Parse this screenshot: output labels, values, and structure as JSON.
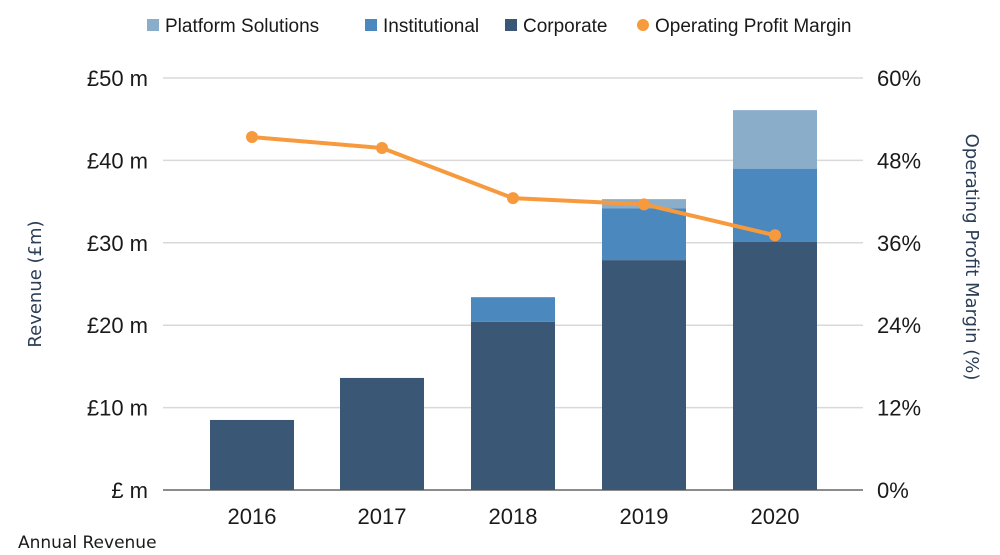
{
  "chart_data": {
    "type": "bar",
    "stacked": true,
    "title": "",
    "caption": "Annual Revenue",
    "categories": [
      "2016",
      "2017",
      "2018",
      "2019",
      "2020"
    ],
    "series": [
      {
        "name": "Corporate",
        "type": "bar",
        "axis": "left",
        "color": "#3a5875",
        "values": [
          8.5,
          13.6,
          20.4,
          27.9,
          30.1
        ]
      },
      {
        "name": "Institutional",
        "type": "bar",
        "axis": "left",
        "color": "#4a88be",
        "values": [
          0,
          0,
          3.0,
          6.3,
          8.9
        ]
      },
      {
        "name": "Platform Solutions",
        "type": "bar",
        "axis": "left",
        "color": "#8aadca",
        "values": [
          0,
          0,
          0,
          1.1,
          7.1
        ]
      },
      {
        "name": "Operating Profit Margin",
        "type": "line",
        "axis": "right",
        "color": "#f79a3e",
        "values": [
          51.4,
          49.8,
          42.5,
          41.6,
          37.1
        ]
      }
    ],
    "legend": {
      "position": "top",
      "items": [
        {
          "label": "Platform Solutions",
          "color": "#8aadca",
          "marker": "square"
        },
        {
          "label": "Institutional",
          "color": "#4a88be",
          "marker": "square"
        },
        {
          "label": "Corporate",
          "color": "#3a5875",
          "marker": "square"
        },
        {
          "label": "Operating Profit Margin",
          "color": "#f79a3e",
          "marker": "circle"
        }
      ]
    },
    "y_left": {
      "label": "Revenue (£m)",
      "ylim": [
        0,
        50
      ],
      "ticks": [
        0,
        10,
        20,
        30,
        40,
        50
      ],
      "tick_labels": [
        "£ m",
        "£10 m",
        "£20 m",
        "£30 m",
        "£40 m",
        "£50 m"
      ]
    },
    "y_right": {
      "label": "Operating Profit Margin (%)",
      "ylim": [
        0,
        60
      ],
      "ticks": [
        0,
        12,
        24,
        36,
        48,
        60
      ],
      "tick_labels": [
        "0%",
        "12%",
        "24%",
        "36%",
        "48%",
        "60%"
      ]
    },
    "xlabel": "",
    "grid": true
  }
}
